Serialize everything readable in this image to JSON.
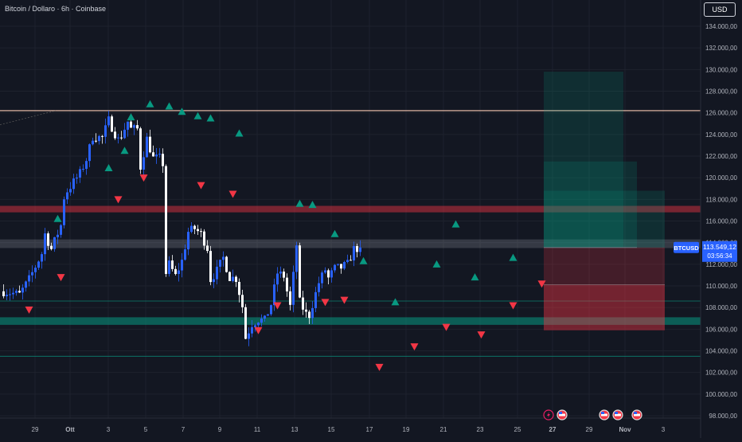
{
  "header": {
    "title": "Bitcoin / Dollaro · 6h · Coinbase",
    "currency_button": "USD"
  },
  "colors": {
    "background": "#131722",
    "up": "#2962ff",
    "down": "#ffffff",
    "buy_signal": "#089981",
    "sell_signal": "#f23645",
    "resistance_line": "#f7c9b3",
    "price_badge": "#2962ff"
  },
  "price_badge": {
    "symbol": "BTCUSD",
    "price": "113.549,12",
    "countdown": "03:56:34"
  },
  "chart_data": {
    "type": "candlestick",
    "symbol": "BTCUSD",
    "timeframe": "6h",
    "exchange": "Coinbase",
    "y_tick_labels": [
      "134.000,00",
      "132.000,00",
      "130.000,00",
      "128.000,00",
      "126.000,00",
      "124.000,00",
      "122.000,00",
      "120.000,00",
      "118.000,00",
      "116.000,00",
      "114.000,00",
      "112.000,00",
      "110.000,00",
      "108.000,00",
      "106.000,00",
      "104.000,00",
      "102.000,00",
      "100.000,00",
      "98.000,00"
    ],
    "x_tick_labels": [
      {
        "label": "29",
        "bold": false
      },
      {
        "label": "Ott",
        "bold": true
      },
      {
        "label": "3",
        "bold": false
      },
      {
        "label": "5",
        "bold": false
      },
      {
        "label": "7",
        "bold": false
      },
      {
        "label": "9",
        "bold": false
      },
      {
        "label": "11",
        "bold": false
      },
      {
        "label": "13",
        "bold": false
      },
      {
        "label": "15",
        "bold": false
      },
      {
        "label": "17",
        "bold": false
      },
      {
        "label": "19",
        "bold": false
      },
      {
        "label": "21",
        "bold": false
      },
      {
        "label": "23",
        "bold": false
      },
      {
        "label": "25",
        "bold": false
      },
      {
        "label": "27",
        "bold": true
      },
      {
        "label": "29",
        "bold": false
      },
      {
        "label": "Nov",
        "bold": true
      },
      {
        "label": "3",
        "bold": false
      }
    ],
    "ylim": [
      98000,
      134000
    ],
    "current_price": 113549.12,
    "close_path": [
      [
        0,
        109500
      ],
      [
        5,
        109200
      ],
      [
        8,
        110600
      ],
      [
        12,
        113000
      ],
      [
        13,
        114800
      ],
      [
        15,
        113400
      ],
      [
        18,
        115600
      ],
      [
        19,
        118200
      ],
      [
        20,
        118800
      ],
      [
        24,
        120400
      ],
      [
        26,
        121700
      ],
      [
        28,
        123800
      ],
      [
        31,
        123700
      ],
      [
        33,
        125300
      ],
      [
        36,
        123500
      ],
      [
        37,
        123900
      ],
      [
        39,
        125200
      ],
      [
        40,
        124500
      ],
      [
        42,
        124500
      ],
      [
        43,
        121000
      ],
      [
        45,
        123600
      ],
      [
        47,
        121800
      ],
      [
        49,
        121800
      ],
      [
        50,
        121300
      ],
      [
        51,
        111200
      ],
      [
        52,
        112000
      ],
      [
        54,
        110900
      ],
      [
        56,
        112300
      ],
      [
        58,
        115000
      ],
      [
        60,
        115300
      ],
      [
        62,
        114800
      ],
      [
        64,
        113500
      ],
      [
        65,
        110600
      ],
      [
        67,
        111400
      ],
      [
        69,
        112600
      ],
      [
        71,
        110800
      ],
      [
        73,
        110700
      ],
      [
        75,
        108100
      ],
      [
        76,
        105200
      ],
      [
        78,
        106500
      ],
      [
        80,
        106900
      ],
      [
        82,
        106800
      ],
      [
        84,
        108300
      ],
      [
        86,
        111200
      ],
      [
        88,
        110900
      ],
      [
        90,
        108100
      ],
      [
        92,
        113800
      ],
      [
        93,
        108500
      ],
      [
        95,
        107400
      ],
      [
        96,
        107300
      ],
      [
        97,
        108300
      ],
      [
        99,
        110300
      ],
      [
        101,
        111500
      ],
      [
        102,
        110700
      ],
      [
        104,
        111600
      ],
      [
        106,
        111700
      ],
      [
        108,
        112000
      ],
      [
        110,
        113400
      ],
      [
        112,
        113549
      ]
    ],
    "levels": [
      {
        "name": "resistance",
        "type": "line",
        "price": 126200
      },
      {
        "name": "supply-zone",
        "type": "zone",
        "from": 116800,
        "to": 117400
      },
      {
        "name": "current-price-zone",
        "type": "zone",
        "from": 113500,
        "to": 114300
      },
      {
        "name": "support-line",
        "type": "line",
        "price": 108600
      },
      {
        "name": "demand-zone",
        "type": "zone",
        "from": 106400,
        "to": 107100
      },
      {
        "name": "lower-support",
        "type": "line",
        "price": 103500
      }
    ],
    "buy_signals": [
      [
        17,
        116200
      ],
      [
        33,
        120900
      ],
      [
        38,
        122500
      ],
      [
        40,
        125600
      ],
      [
        46,
        126800
      ],
      [
        52,
        126600
      ],
      [
        56,
        126100
      ],
      [
        61,
        125700
      ],
      [
        65,
        125500
      ],
      [
        74,
        124100
      ],
      [
        93,
        117600
      ],
      [
        97,
        117500
      ],
      [
        104,
        114800
      ],
      [
        113,
        112300
      ],
      [
        123,
        108500
      ],
      [
        136,
        112000
      ],
      [
        142,
        115700
      ],
      [
        148,
        110800
      ],
      [
        160,
        112600
      ]
    ],
    "sell_signals": [
      [
        8,
        107800
      ],
      [
        18,
        110800
      ],
      [
        36,
        118000
      ],
      [
        44,
        120000
      ],
      [
        62,
        119300
      ],
      [
        72,
        118500
      ],
      [
        80,
        105900
      ],
      [
        86,
        108200
      ],
      [
        101,
        108500
      ],
      [
        107,
        108700
      ],
      [
        118,
        102500
      ],
      [
        129,
        104400
      ],
      [
        139,
        106200
      ],
      [
        150,
        105500
      ],
      [
        160,
        108200
      ],
      [
        169,
        110200
      ]
    ],
    "position_tool": {
      "entry_price": 113549,
      "take_profit_levels": [
        129800,
        121500,
        118800
      ],
      "stop_loss_levels": [
        110100,
        105900
      ]
    },
    "event_markers": [
      {
        "type": "lightning",
        "date": "27"
      },
      {
        "type": "us-flag",
        "date": "27"
      },
      {
        "type": "us-flag",
        "date": "30"
      },
      {
        "type": "us-flag",
        "date": "30"
      },
      {
        "type": "us-flag",
        "date": "31"
      }
    ]
  }
}
